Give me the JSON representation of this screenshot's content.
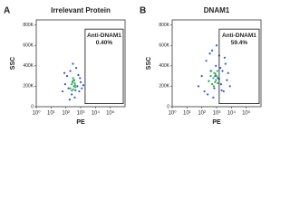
{
  "chart_data": [
    {
      "type": "scatter",
      "panel": "A",
      "title": "Irrelevant Protein",
      "x_label": "PE",
      "y_label": "SSC",
      "log_x": true,
      "xlim": [
        1,
        1000000
      ],
      "xticks": [
        {
          "value": 1,
          "label": "10⁰"
        },
        {
          "value": 10,
          "label": "10¹"
        },
        {
          "value": 100,
          "label": "10²"
        },
        {
          "value": 1000,
          "label": "10³"
        },
        {
          "value": 10000,
          "label": "10⁴"
        },
        {
          "value": 100000,
          "label": "10⁵"
        }
      ],
      "ylim": [
        0,
        850000
      ],
      "yticks": [
        {
          "value": 0,
          "label": "0"
        },
        {
          "value": 200000,
          "label": "200K"
        },
        {
          "value": 400000,
          "label": "400K"
        },
        {
          "value": 600000,
          "label": "600K"
        },
        {
          "value": 800000,
          "label": "800K"
        }
      ],
      "series": [
        {
          "color": "#3355d6",
          "x": [
            60,
            90,
            120,
            150,
            200,
            250,
            300,
            350,
            400,
            500,
            600,
            700,
            800,
            1000,
            1200,
            80,
            180,
            450,
            900,
            1500
          ],
          "y": [
            150000,
            220000,
            300000,
            180000,
            350000,
            120000,
            420000,
            260000,
            90000,
            380000,
            200000,
            310000,
            150000,
            240000,
            180000,
            330000,
            70000,
            160000,
            280000,
            210000
          ]
        },
        {
          "color": "#2fae5a",
          "x": [
            200,
            250,
            300,
            350,
            400,
            450,
            300,
            250,
            380,
            420,
            320,
            280
          ],
          "y": [
            180000,
            220000,
            250000,
            200000,
            230000,
            190000,
            280000,
            160000,
            260000,
            210000,
            170000,
            240000
          ]
        }
      ],
      "gate": {
        "name": "Anti-DNAM1",
        "percent": 0.4,
        "percent_label": "0.40%",
        "x": [
          2000,
          800000
        ],
        "y": [
          30000,
          760000
        ]
      }
    },
    {
      "type": "scatter",
      "panel": "B",
      "title": "DNAM1",
      "x_label": "PE",
      "y_label": "SSC",
      "log_x": true,
      "xlim": [
        1,
        1000000
      ],
      "xticks": [
        {
          "value": 1,
          "label": "10⁰"
        },
        {
          "value": 10,
          "label": "10¹"
        },
        {
          "value": 100,
          "label": "10²"
        },
        {
          "value": 1000,
          "label": "10³"
        },
        {
          "value": 10000,
          "label": "10⁴"
        },
        {
          "value": 100000,
          "label": "10⁵"
        }
      ],
      "ylim": [
        0,
        850000
      ],
      "yticks": [
        {
          "value": 0,
          "label": "0"
        },
        {
          "value": 200000,
          "label": "200K"
        },
        {
          "value": 400000,
          "label": "400K"
        },
        {
          "value": 600000,
          "label": "600K"
        },
        {
          "value": 800000,
          "label": "800K"
        }
      ],
      "series": [
        {
          "color": "#3355d6",
          "x": [
            60,
            100,
            150,
            200,
            300,
            400,
            500,
            700,
            900,
            1200,
            1500,
            2000,
            2500,
            3000,
            4000,
            5000,
            6000,
            8000,
            250,
            600,
            1000,
            1800,
            3500,
            350,
            800,
            2200
          ],
          "y": [
            200000,
            300000,
            150000,
            450000,
            250000,
            350000,
            550000,
            180000,
            400000,
            280000,
            500000,
            220000,
            350000,
            150000,
            420000,
            260000,
            330000,
            200000,
            120000,
            90000,
            600000,
            380000,
            480000,
            520000,
            300000,
            160000
          ]
        },
        {
          "color": "#2fae5a",
          "x": [
            300,
            400,
            500,
            600,
            700,
            800,
            900,
            1000,
            1200,
            1500,
            450,
            650,
            850,
            1100
          ],
          "y": [
            250000,
            300000,
            220000,
            280000,
            330000,
            240000,
            260000,
            300000,
            230000,
            270000,
            350000,
            200000,
            320000,
            350000
          ]
        }
      ],
      "gate": {
        "name": "Anti-DNAM1",
        "percent": 59.4,
        "percent_label": "59.4%",
        "x": [
          1500,
          800000
        ],
        "y": [
          30000,
          760000
        ]
      }
    }
  ]
}
